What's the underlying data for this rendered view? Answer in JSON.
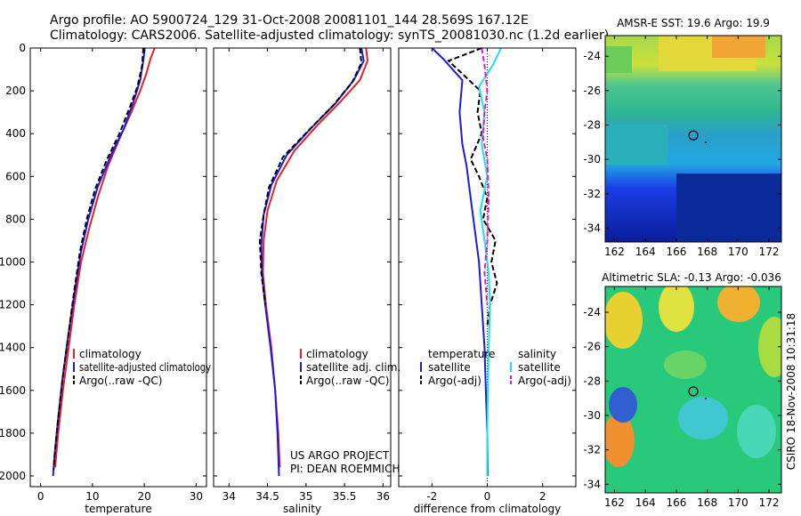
{
  "title_line1": "Argo profile: AO 5900724_129 31-Oct-2008 20081101_144 28.569S 167.12E",
  "title_line2": "Climatology: CARS2006. Satellite-adjusted climatology: synTS_20081030.nc (1.2d earlier)",
  "project_line1": "US ARGO PROJECT",
  "project_line2": "PI: DEAN ROEMMICH",
  "credit": "CSIRO 18-Nov-2008 10:31:18",
  "colors": {
    "red": "#e8202a",
    "blue": "#1a1ae6",
    "black": "#000000",
    "cyan": "#19e3e3",
    "magenta": "#e619c8"
  },
  "chart_data": [
    {
      "type": "line",
      "title": "",
      "xlabel": "temperature",
      "ylabel": "",
      "xlim": [
        -2,
        32
      ],
      "ylim": [
        2050,
        0
      ],
      "xticks": [
        "0",
        "10",
        "20",
        "30"
      ],
      "xtick_values": [
        0,
        10,
        20,
        30
      ],
      "yticks": [
        "0",
        "200",
        "400",
        "600",
        "800",
        "1000",
        "1200",
        "1400",
        "1600",
        "1800",
        "2000"
      ],
      "ytick_values": [
        0,
        200,
        400,
        600,
        800,
        1000,
        1200,
        1400,
        1600,
        1800,
        2000
      ],
      "legend": [
        "climatology",
        "satellite-adjusted climatology",
        "Argo(..raw -QC)"
      ],
      "series": [
        {
          "name": "climatology",
          "color": "red",
          "dash": false,
          "points": [
            [
              22.0,
              0
            ],
            [
              21.2,
              50
            ],
            [
              20.4,
              120
            ],
            [
              19.2,
              200
            ],
            [
              17.5,
              300
            ],
            [
              15.3,
              420
            ],
            [
              13.0,
              550
            ],
            [
              11.0,
              700
            ],
            [
              9.3,
              850
            ],
            [
              7.8,
              1000
            ],
            [
              6.5,
              1200
            ],
            [
              5.4,
              1400
            ],
            [
              4.3,
              1600
            ],
            [
              3.4,
              1800
            ],
            [
              2.8,
              1960
            ]
          ]
        },
        {
          "name": "satellite-adjusted climatology",
          "color": "blue",
          "dash": false,
          "points": [
            [
              20.1,
              0
            ],
            [
              19.8,
              60
            ],
            [
              19.2,
              150
            ],
            [
              17.8,
              260
            ],
            [
              16.0,
              380
            ],
            [
              13.6,
              500
            ],
            [
              11.0,
              650
            ],
            [
              9.2,
              800
            ],
            [
              7.8,
              950
            ],
            [
              6.5,
              1150
            ],
            [
              5.3,
              1350
            ],
            [
              4.2,
              1550
            ],
            [
              3.3,
              1750
            ],
            [
              2.7,
              1900
            ],
            [
              2.4,
              2000
            ]
          ]
        },
        {
          "name": "Argo(..raw -QC)",
          "color": "black",
          "dash": true,
          "points": [
            [
              19.8,
              0
            ],
            [
              19.6,
              80
            ],
            [
              18.7,
              180
            ],
            [
              17.0,
              290
            ],
            [
              15.2,
              400
            ],
            [
              12.8,
              520
            ],
            [
              10.5,
              660
            ],
            [
              8.9,
              800
            ],
            [
              7.6,
              950
            ],
            [
              6.4,
              1150
            ],
            [
              5.3,
              1350
            ],
            [
              4.2,
              1550
            ],
            [
              3.3,
              1750
            ],
            [
              2.7,
              1900
            ],
            [
              2.5,
              1970
            ]
          ]
        }
      ]
    },
    {
      "type": "line",
      "xlabel": "salinity",
      "xlim": [
        33.8,
        36.1
      ],
      "ylim": [
        2050,
        0
      ],
      "xticks": [
        "34",
        "34.5",
        "35",
        "35.5",
        "36"
      ],
      "xtick_values": [
        34,
        34.5,
        35,
        35.5,
        36
      ],
      "legend": [
        "climatology",
        "satellite adj. clim.",
        "Argo(..raw -QC)"
      ],
      "series": [
        {
          "name": "climatology",
          "color": "red",
          "dash": false,
          "points": [
            [
              35.78,
              0
            ],
            [
              35.8,
              60
            ],
            [
              35.7,
              150
            ],
            [
              35.45,
              250
            ],
            [
              35.15,
              360
            ],
            [
              34.85,
              480
            ],
            [
              34.62,
              620
            ],
            [
              34.5,
              760
            ],
            [
              34.45,
              900
            ],
            [
              34.44,
              1050
            ],
            [
              34.48,
              1200
            ],
            [
              34.55,
              1400
            ],
            [
              34.6,
              1600
            ],
            [
              34.64,
              1800
            ],
            [
              34.66,
              1960
            ]
          ]
        },
        {
          "name": "satellite adj. clim.",
          "color": "blue",
          "dash": false,
          "points": [
            [
              35.72,
              0
            ],
            [
              35.75,
              60
            ],
            [
              35.62,
              150
            ],
            [
              35.38,
              260
            ],
            [
              35.05,
              380
            ],
            [
              34.75,
              500
            ],
            [
              34.55,
              640
            ],
            [
              34.45,
              780
            ],
            [
              34.42,
              920
            ],
            [
              34.43,
              1060
            ],
            [
              34.47,
              1200
            ],
            [
              34.54,
              1400
            ],
            [
              34.6,
              1600
            ],
            [
              34.63,
              1800
            ],
            [
              34.65,
              2000
            ]
          ]
        },
        {
          "name": "Argo(..raw -QC)",
          "color": "black",
          "dash": true,
          "points": [
            [
              35.7,
              0
            ],
            [
              35.72,
              70
            ],
            [
              35.6,
              160
            ],
            [
              35.35,
              270
            ],
            [
              35.02,
              390
            ],
            [
              34.7,
              510
            ],
            [
              34.52,
              650
            ],
            [
              34.45,
              780
            ],
            [
              34.4,
              900
            ],
            [
              34.42,
              1050
            ],
            [
              34.47,
              1200
            ]
          ]
        }
      ]
    },
    {
      "type": "line",
      "xlabel": "difference from climatology",
      "xlim": [
        -3.2,
        3.2
      ],
      "ylim": [
        2050,
        0
      ],
      "xticks": [
        "-2",
        "0",
        "2"
      ],
      "xtick_values": [
        -2,
        0,
        2
      ],
      "legend_title_left": "temperature",
      "legend_title_right": "salinity",
      "legend": [
        "satellite",
        "Argo(-adj)",
        "satellite",
        "Argo(-adj)"
      ],
      "series": [
        {
          "name": "temperature satellite",
          "color": "blue",
          "dash": false,
          "points": [
            [
              -2.0,
              0
            ],
            [
              -1.6,
              50
            ],
            [
              -0.9,
              150
            ],
            [
              -1.0,
              300
            ],
            [
              -0.9,
              450
            ],
            [
              -0.75,
              550
            ],
            [
              -0.6,
              700
            ],
            [
              -0.45,
              850
            ],
            [
              -0.3,
              1000
            ],
            [
              -0.2,
              1200
            ],
            [
              -0.1,
              1400
            ],
            [
              -0.05,
              1600
            ],
            [
              0.0,
              1800
            ],
            [
              0.02,
              2000
            ]
          ]
        },
        {
          "name": "temperature Argo(-adj)",
          "color": "black",
          "dash": true,
          "points": [
            [
              -0.2,
              0
            ],
            [
              -1.4,
              60
            ],
            [
              -0.9,
              120
            ],
            [
              -0.25,
              200
            ],
            [
              -0.35,
              300
            ],
            [
              -0.2,
              400
            ],
            [
              -0.6,
              520
            ],
            [
              -0.3,
              600
            ],
            [
              0.0,
              700
            ],
            [
              -0.15,
              800
            ],
            [
              0.3,
              900
            ],
            [
              0.15,
              1000
            ],
            [
              0.35,
              1100
            ],
            [
              0.1,
              1200
            ],
            [
              0.0,
              1300
            ]
          ]
        },
        {
          "name": "salinity satellite",
          "color": "cyan",
          "dash": false,
          "points": [
            [
              0.5,
              0
            ],
            [
              0.2,
              80
            ],
            [
              -0.3,
              180
            ],
            [
              -0.1,
              300
            ],
            [
              -0.2,
              450
            ],
            [
              0.0,
              600
            ],
            [
              -0.25,
              760
            ],
            [
              -0.1,
              900
            ],
            [
              0.05,
              1050
            ],
            [
              0.1,
              1200
            ],
            [
              0.05,
              1400
            ],
            [
              0.02,
              1600
            ],
            [
              0.0,
              1800
            ],
            [
              0.0,
              2000
            ]
          ]
        },
        {
          "name": "salinity Argo(-adj)",
          "color": "magenta",
          "dash": true,
          "points": [
            [
              -0.2,
              0
            ],
            [
              -0.1,
              80
            ],
            [
              0.0,
              200
            ],
            [
              -0.1,
              300
            ],
            [
              -0.15,
              420
            ],
            [
              0.0,
              520
            ],
            [
              0.05,
              700
            ],
            [
              0.0,
              900
            ],
            [
              -0.1,
              1050
            ],
            [
              0.0,
              1200
            ]
          ]
        }
      ]
    },
    {
      "type": "heatmap",
      "title": "AMSR-E SST: 19.6 Argo: 19.9",
      "xlim": [
        161.4,
        172.8
      ],
      "ylim": [
        -34.8,
        -22.8
      ],
      "xticks": [
        "162",
        "164",
        "166",
        "168",
        "170",
        "172"
      ],
      "xtick_values": [
        162,
        164,
        166,
        168,
        170,
        172
      ],
      "yticks": [
        "-24",
        "-26",
        "-28",
        "-30",
        "-32",
        "-34"
      ],
      "ytick_values": [
        -24,
        -26,
        -28,
        -30,
        -32,
        -34
      ],
      "marker": [
        167.1,
        -28.6
      ]
    },
    {
      "type": "heatmap",
      "title": "Altimetric SLA: -0.13 Argo: -0.036",
      "xlim": [
        161.4,
        172.8
      ],
      "ylim": [
        -34.5,
        -22.5
      ],
      "xticks": [
        "162",
        "164",
        "166",
        "168",
        "170",
        "172"
      ],
      "xtick_values": [
        162,
        164,
        166,
        168,
        170,
        172
      ],
      "yticks": [
        "-24",
        "-26",
        "-28",
        "-30",
        "-32",
        "-34"
      ],
      "ytick_values": [
        -24,
        -26,
        -28,
        -30,
        -32,
        -34
      ],
      "marker": [
        167.1,
        -28.6
      ]
    }
  ]
}
